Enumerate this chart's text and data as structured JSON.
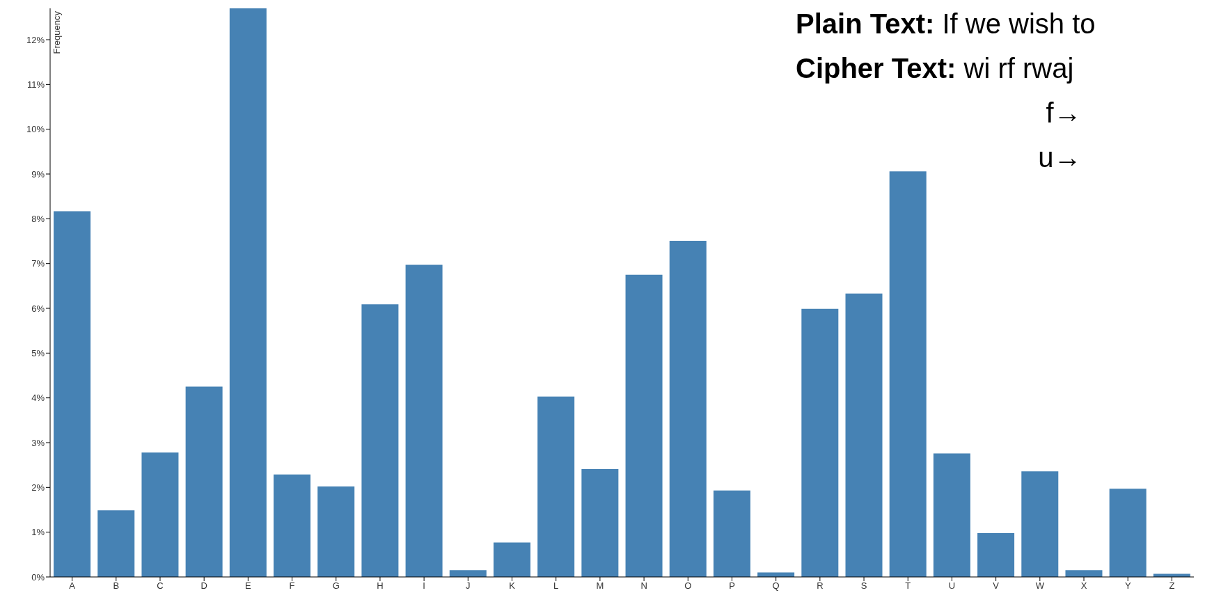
{
  "chart_data": {
    "type": "bar",
    "ylabel": "Frequency",
    "categories": [
      "A",
      "B",
      "C",
      "D",
      "E",
      "F",
      "G",
      "H",
      "I",
      "J",
      "K",
      "L",
      "M",
      "N",
      "O",
      "P",
      "Q",
      "R",
      "S",
      "T",
      "U",
      "V",
      "W",
      "X",
      "Y",
      "Z"
    ],
    "values": [
      8.17,
      1.49,
      2.78,
      4.25,
      12.7,
      2.29,
      2.02,
      6.09,
      6.97,
      0.15,
      0.77,
      4.03,
      2.41,
      6.75,
      7.51,
      1.93,
      0.1,
      5.99,
      6.33,
      9.06,
      2.76,
      0.98,
      2.36,
      0.15,
      1.97,
      0.07
    ],
    "color": "#4682b4",
    "ylim": [
      0,
      12.7
    ],
    "yticks": [
      {
        "value": 0,
        "label": "0%"
      },
      {
        "value": 1,
        "label": "1%"
      },
      {
        "value": 2,
        "label": "2%"
      },
      {
        "value": 3,
        "label": "3%"
      },
      {
        "value": 4,
        "label": "4%"
      },
      {
        "value": 5,
        "label": "5%"
      },
      {
        "value": 6,
        "label": "6%"
      },
      {
        "value": 7,
        "label": "7%"
      },
      {
        "value": 8,
        "label": "8%"
      },
      {
        "value": 9,
        "label": "9%"
      },
      {
        "value": 10,
        "label": "10%"
      },
      {
        "value": 11,
        "label": "11%"
      },
      {
        "value": 12,
        "label": "12%"
      }
    ],
    "grid": false,
    "annotations": [
      "Plain Text: If we wish to",
      "Cipher Text: wi rf rwaj",
      "f→",
      "u→"
    ]
  }
}
